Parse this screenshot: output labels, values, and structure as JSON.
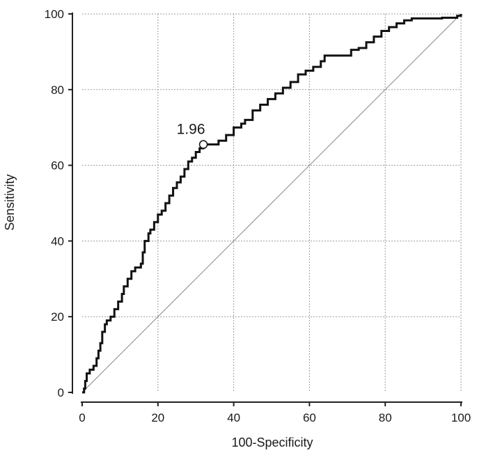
{
  "chart_data": {
    "type": "line",
    "xlabel": "100-Specificity",
    "ylabel": "Sensitivity",
    "xlim": [
      0,
      100
    ],
    "ylim": [
      0,
      100
    ],
    "x_ticks": [
      0,
      20,
      40,
      60,
      80,
      100
    ],
    "y_ticks": [
      0,
      20,
      40,
      60,
      80,
      100
    ],
    "x_tick_labels": [
      "0",
      "20",
      "40",
      "60",
      "80",
      "100"
    ],
    "y_tick_labels": [
      "0",
      "20",
      "40",
      "60",
      "80",
      "100"
    ],
    "grid": true,
    "series": [
      {
        "style": "step",
        "color": "#111111",
        "points": [
          [
            0,
            0
          ],
          [
            0.5,
            1
          ],
          [
            0.8,
            3
          ],
          [
            1.2,
            5
          ],
          [
            2,
            6
          ],
          [
            3,
            7
          ],
          [
            3.8,
            9
          ],
          [
            4.3,
            11
          ],
          [
            4.8,
            13
          ],
          [
            5.3,
            16
          ],
          [
            6,
            18
          ],
          [
            6.5,
            19
          ],
          [
            7.5,
            20
          ],
          [
            8.5,
            22
          ],
          [
            9.5,
            24
          ],
          [
            10.5,
            26
          ],
          [
            11,
            28
          ],
          [
            12,
            30
          ],
          [
            13,
            32
          ],
          [
            14,
            33
          ],
          [
            15.5,
            34
          ],
          [
            16,
            37
          ],
          [
            16.5,
            40
          ],
          [
            17.5,
            42
          ],
          [
            18,
            43
          ],
          [
            19,
            45
          ],
          [
            20,
            47
          ],
          [
            21,
            48
          ],
          [
            22,
            50
          ],
          [
            23,
            52
          ],
          [
            24,
            54
          ],
          [
            25,
            55.5
          ],
          [
            26,
            57
          ],
          [
            27,
            59
          ],
          [
            28,
            61
          ],
          [
            29,
            62
          ],
          [
            30,
            63.5
          ],
          [
            31,
            64.5
          ],
          [
            32,
            65.5
          ],
          [
            34,
            65.5
          ],
          [
            36,
            66.5
          ],
          [
            38,
            68
          ],
          [
            40,
            70
          ],
          [
            42,
            71
          ],
          [
            43,
            72
          ],
          [
            45,
            74.5
          ],
          [
            47,
            76
          ],
          [
            49,
            77.5
          ],
          [
            51,
            79
          ],
          [
            53,
            80.5
          ],
          [
            55,
            82
          ],
          [
            57,
            84
          ],
          [
            59,
            85
          ],
          [
            61,
            86
          ],
          [
            63,
            87.5
          ],
          [
            64,
            89
          ],
          [
            69,
            89
          ],
          [
            71,
            90.5
          ],
          [
            73,
            91
          ],
          [
            75,
            92.5
          ],
          [
            77,
            94
          ],
          [
            79,
            95.5
          ],
          [
            81,
            96.5
          ],
          [
            83,
            97.5
          ],
          [
            85,
            98.3
          ],
          [
            87,
            98.8
          ],
          [
            95,
            99
          ],
          [
            99,
            99.5
          ],
          [
            100,
            100
          ]
        ]
      },
      {
        "style": "reference-diagonal",
        "color": "#8a8a8a",
        "points": [
          [
            0,
            0
          ],
          [
            100,
            100
          ]
        ]
      }
    ],
    "annotations": [
      {
        "text": "1.96",
        "x": 32,
        "y": 65.5,
        "marker": "open-circle"
      }
    ]
  }
}
